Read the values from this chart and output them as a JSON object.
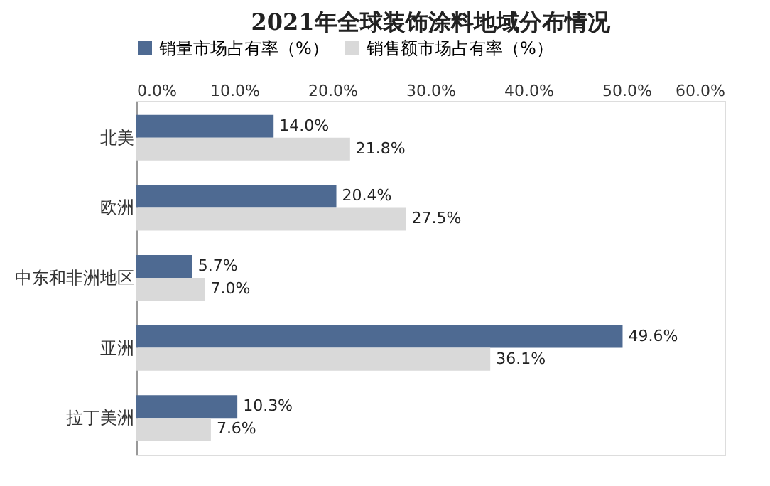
{
  "chart_data": {
    "type": "bar",
    "orientation": "horizontal",
    "title": "2021年全球装饰涂料地域分布情况",
    "categories": [
      "北美",
      "欧洲",
      "中东和非洲地区",
      "亚洲",
      "拉丁美洲"
    ],
    "series": [
      {
        "name": "销量市场占有率（%）",
        "color": "#4e6a92",
        "values": [
          14.0,
          20.4,
          5.7,
          49.6,
          10.3
        ],
        "value_labels": [
          "14.0%",
          "20.4%",
          "5.7%",
          "49.6%",
          "10.3%"
        ]
      },
      {
        "name": "销售额市场占有率（%）",
        "color": "#d9d9d9",
        "values": [
          21.8,
          27.5,
          7.0,
          36.1,
          7.6
        ],
        "value_labels": [
          "21.8%",
          "27.5%",
          "7.0%",
          "36.1%",
          "7.6%"
        ]
      }
    ],
    "xlim": [
      0,
      60
    ],
    "xticks": [
      {
        "value": 0,
        "label": "0.0%"
      },
      {
        "value": 10,
        "label": "10.0%"
      },
      {
        "value": 20,
        "label": "20.0%"
      },
      {
        "value": 30,
        "label": "30.0%"
      },
      {
        "value": 40,
        "label": "40.0%"
      },
      {
        "value": 50,
        "label": "50.0%"
      },
      {
        "value": 60,
        "label": "60.0%"
      }
    ],
    "grid": false,
    "legend": "top"
  }
}
